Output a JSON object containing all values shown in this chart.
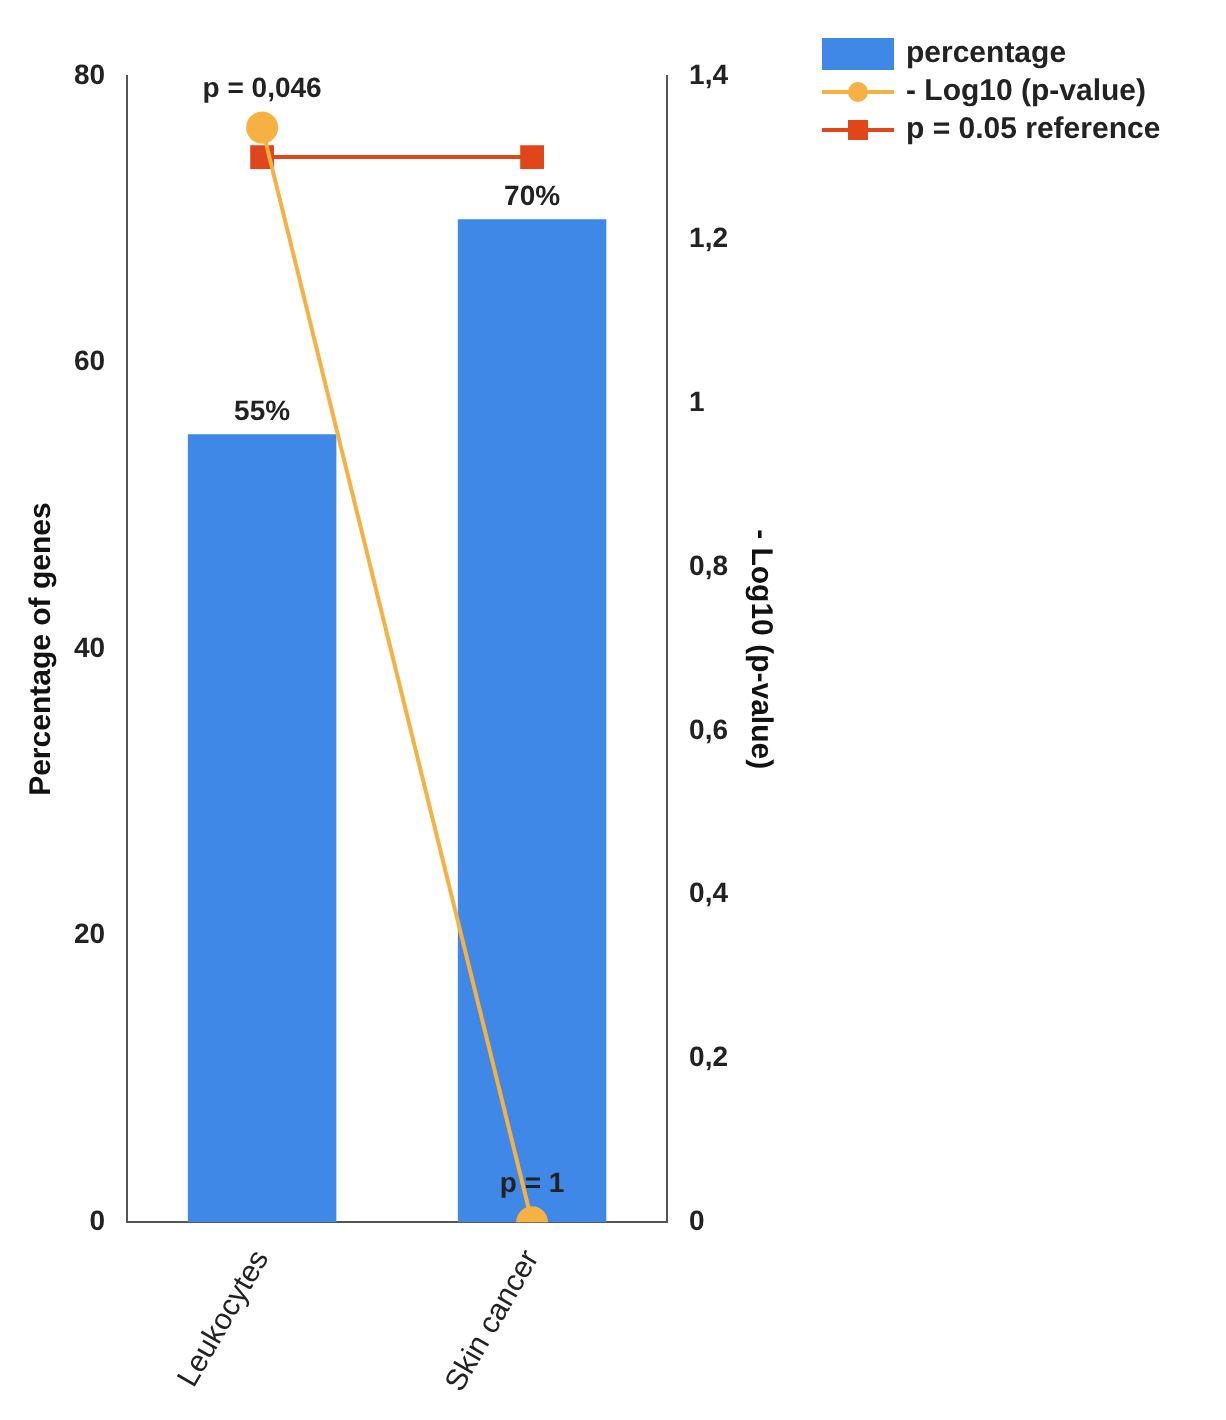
{
  "chart_data": {
    "type": "bar",
    "categories": [
      "Leukocytes",
      "Skin cancer"
    ],
    "series": [
      {
        "name": "percentage",
        "color": "#3f88e8",
        "values": [
          55,
          70
        ],
        "value_labels": [
          "55%",
          "70%"
        ]
      },
      {
        "name": "- Log10 (p-value)",
        "type": "line",
        "axis": "y2",
        "color": "#f5b142",
        "marker": "circle",
        "values": [
          1.337,
          0
        ]
      },
      {
        "name": "p = 0.05 reference",
        "type": "line",
        "axis": "y2",
        "color": "#e0461a",
        "marker": "square",
        "values": [
          1.301,
          1.301
        ]
      }
    ],
    "ylabel": "Percentage of genes",
    "y2label": "- Log10 (p-value)",
    "ylim": [
      0,
      80
    ],
    "yticks": [
      0,
      20,
      40,
      60,
      80
    ],
    "y2lim": [
      0,
      1.4
    ],
    "y2ticks": [
      0,
      {
        "value": 0.2,
        "label": "0,2"
      },
      {
        "value": 0.4,
        "label": "0,4"
      },
      {
        "value": 0.6,
        "label": "0,6"
      },
      {
        "value": 0.8,
        "label": "0,8"
      },
      1,
      {
        "value": 1.2,
        "label": "1,2"
      },
      {
        "value": 1.4,
        "label": "1,4"
      }
    ],
    "annotations": [
      {
        "text": "p = 0,046",
        "x": "Leukocytes",
        "y": 76.4
      },
      {
        "text": "p = 1",
        "x": "Skin cancer",
        "y": 0
      }
    ],
    "grid": false,
    "legend": "top right"
  }
}
